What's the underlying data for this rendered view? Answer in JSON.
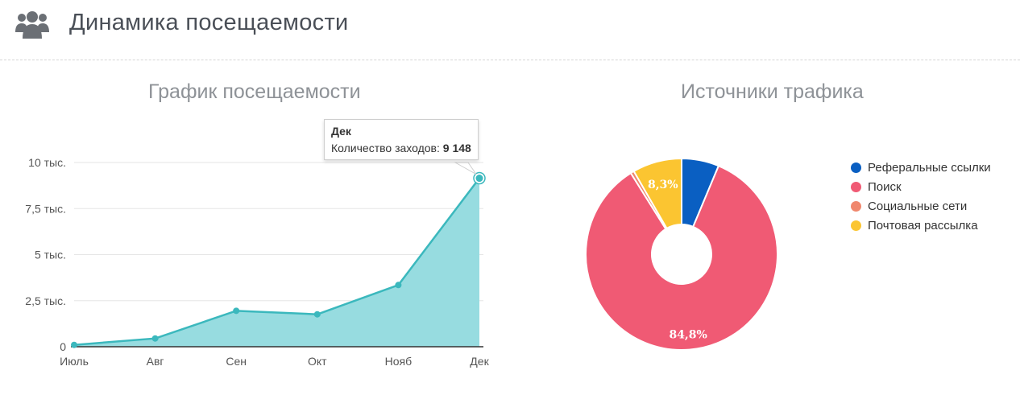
{
  "header": {
    "title": "Динамика посещаемости",
    "icon": "users-icon"
  },
  "colors": {
    "area_fill": "#97dce0",
    "line": "#3bb8bd",
    "grid": "#e6e6e6",
    "axis": "#333333"
  },
  "chart_data": [
    {
      "type": "area",
      "title": "График посещаемости",
      "categories": [
        "Июль",
        "Авг",
        "Сен",
        "Окт",
        "Нояб",
        "Дек"
      ],
      "series": [
        {
          "values": [
            100,
            450,
            1950,
            1760,
            3350,
            9148
          ]
        }
      ],
      "ylim": [
        0,
        10000
      ],
      "yticks": [
        0,
        2500,
        5000,
        7500,
        10000
      ],
      "ytick_labels": [
        "0",
        "2,5 тыс.",
        "5 тыс.",
        "7,5 тыс.",
        "10 тыс."
      ],
      "grid": true,
      "tooltip": {
        "title": "Дек",
        "label": "Количество заходов:",
        "value": "9 148"
      }
    },
    {
      "type": "pie",
      "title": "Источники трафика",
      "legend_position": "right",
      "slices": [
        {
          "label": "Реферальные ссылки",
          "value": 6.3,
          "color": "#0a5fc2"
        },
        {
          "label": "Поиск",
          "value": 84.8,
          "color": "#f05a74",
          "data_label": "84,8%"
        },
        {
          "label": "Социальные сети",
          "value": 0.6,
          "color": "#f0876d"
        },
        {
          "label": "Почтовая рассылка",
          "value": 8.3,
          "color": "#fbc531",
          "data_label": "8,3%"
        }
      ]
    }
  ]
}
